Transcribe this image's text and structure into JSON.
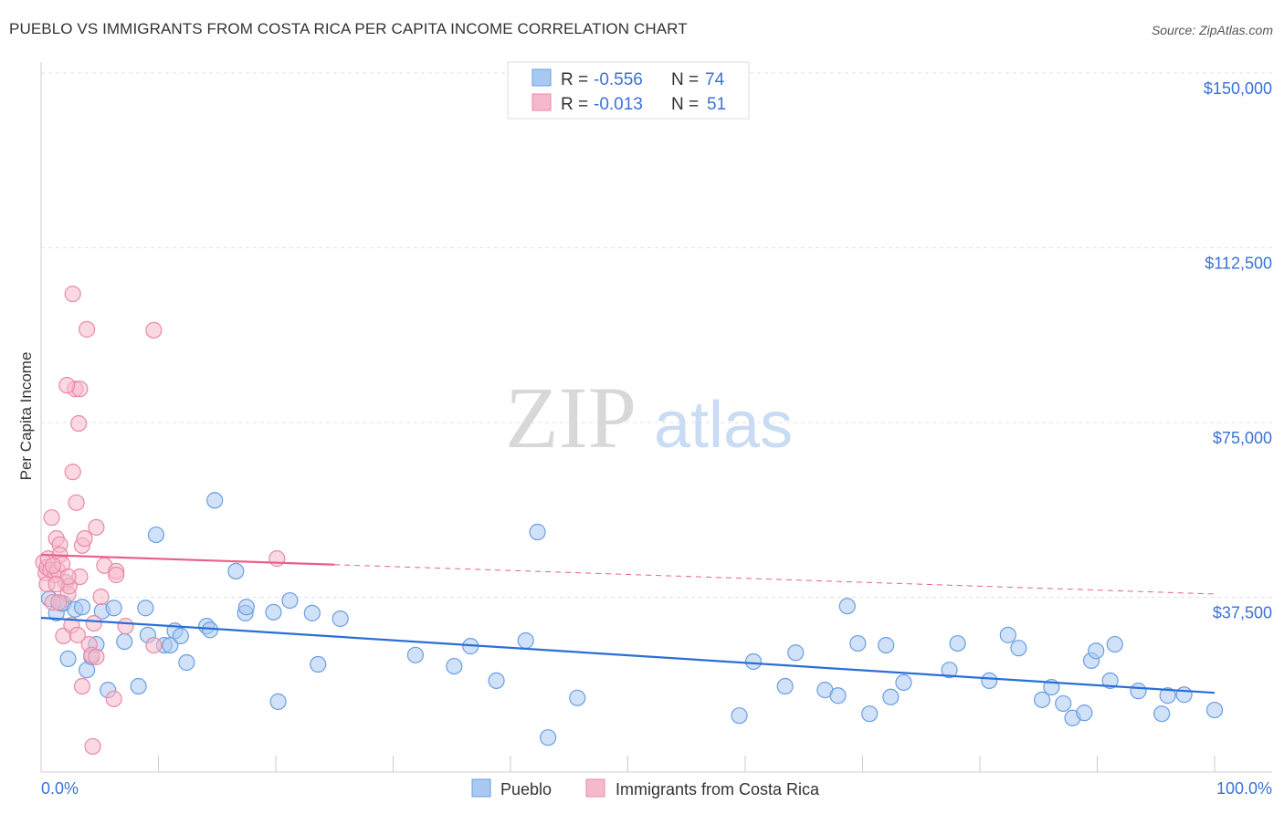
{
  "title": "PUEBLO VS IMMIGRANTS FROM COSTA RICA PER CAPITA INCOME CORRELATION CHART",
  "source": "Source: ZipAtlas.com",
  "watermark": {
    "zip": "ZIP",
    "atlas": "atlas"
  },
  "legend_top": [
    {
      "r_label": "R = ",
      "r": "-0.556",
      "n_label": "N = ",
      "n": "74"
    },
    {
      "r_label": "R = ",
      "r": "-0.013",
      "n_label": "N = ",
      "n": "51"
    }
  ],
  "colors": {
    "blue": "#2a6fd6",
    "blue_fill": "#a9c9f2",
    "pink": "#e8608a",
    "pink_fill": "#f6b9cb",
    "accent": "#3a72d8"
  },
  "chart_data": {
    "type": "scatter",
    "title": "PUEBLO VS IMMIGRANTS FROM COSTA RICA PER CAPITA INCOME CORRELATION CHART",
    "xlabel": "",
    "ylabel": "Per Capita Income",
    "xlim": [
      0,
      100
    ],
    "ylim": [
      0,
      150000
    ],
    "x_tick_labels": [
      "0.0%",
      "100.0%"
    ],
    "y_ticks": [
      37500,
      75000,
      112500,
      150000
    ],
    "y_tick_labels": [
      "$37,500",
      "$75,000",
      "$112,500",
      "$150,000"
    ],
    "grid": true,
    "legend_position": "bottom",
    "series": [
      {
        "name": "Pueblo",
        "color": "#2a6fd6",
        "trend": {
          "x": [
            0,
            100
          ],
          "y": [
            33100,
            17000
          ],
          "dashed_from": null
        },
        "points": [
          [
            0.7,
            37200
          ],
          [
            1.3,
            34100
          ],
          [
            1.7,
            36200
          ],
          [
            1.9,
            36200
          ],
          [
            2.3,
            24300
          ],
          [
            2.9,
            34900
          ],
          [
            3.5,
            35400
          ],
          [
            3.9,
            21900
          ],
          [
            4.3,
            24700
          ],
          [
            4.7,
            27400
          ],
          [
            5.2,
            34500
          ],
          [
            5.7,
            17600
          ],
          [
            6.2,
            35200
          ],
          [
            7.1,
            28000
          ],
          [
            8.3,
            18400
          ],
          [
            8.9,
            35200
          ],
          [
            9.1,
            29400
          ],
          [
            9.8,
            50900
          ],
          [
            10.5,
            27200
          ],
          [
            11.0,
            27200
          ],
          [
            11.4,
            30300
          ],
          [
            11.9,
            29200
          ],
          [
            12.4,
            23500
          ],
          [
            14.1,
            31300
          ],
          [
            14.4,
            30500
          ],
          [
            14.8,
            58300
          ],
          [
            16.6,
            43100
          ],
          [
            17.4,
            34100
          ],
          [
            17.5,
            35400
          ],
          [
            19.8,
            34300
          ],
          [
            20.2,
            15100
          ],
          [
            21.2,
            36800
          ],
          [
            23.1,
            34100
          ],
          [
            23.6,
            23100
          ],
          [
            25.5,
            32900
          ],
          [
            31.9,
            25100
          ],
          [
            35.2,
            22700
          ],
          [
            36.6,
            27000
          ],
          [
            38.8,
            19600
          ],
          [
            41.3,
            28200
          ],
          [
            42.3,
            51500
          ],
          [
            43.2,
            7400
          ],
          [
            45.7,
            15900
          ],
          [
            59.5,
            12100
          ],
          [
            60.7,
            23700
          ],
          [
            63.4,
            18400
          ],
          [
            64.3,
            25600
          ],
          [
            66.8,
            17600
          ],
          [
            67.9,
            16400
          ],
          [
            68.7,
            35600
          ],
          [
            69.6,
            27600
          ],
          [
            70.6,
            12500
          ],
          [
            72.0,
            27200
          ],
          [
            72.4,
            16100
          ],
          [
            73.5,
            19200
          ],
          [
            77.4,
            21900
          ],
          [
            78.1,
            27600
          ],
          [
            80.8,
            19600
          ],
          [
            82.4,
            29400
          ],
          [
            83.3,
            26600
          ],
          [
            85.3,
            15500
          ],
          [
            86.1,
            18200
          ],
          [
            87.1,
            14700
          ],
          [
            87.9,
            11600
          ],
          [
            88.9,
            12700
          ],
          [
            89.5,
            23900
          ],
          [
            89.9,
            26000
          ],
          [
            91.1,
            19600
          ],
          [
            91.5,
            27400
          ],
          [
            93.5,
            17400
          ],
          [
            95.5,
            12500
          ],
          [
            96.0,
            16400
          ],
          [
            97.4,
            16600
          ],
          [
            100,
            13300
          ]
        ]
      },
      {
        "name": "Immigrants from Costa Rica",
        "color": "#e8608a",
        "trend": {
          "x": [
            0,
            100
          ],
          "y": [
            46600,
            38200
          ],
          "dashed_from": 25
        },
        "points": [
          [
            0.2,
            45000
          ],
          [
            0.4,
            42700
          ],
          [
            0.5,
            43900
          ],
          [
            0.6,
            45800
          ],
          [
            0.8,
            43300
          ],
          [
            0.9,
            54600
          ],
          [
            1.0,
            36400
          ],
          [
            1.2,
            42300
          ],
          [
            1.3,
            50100
          ],
          [
            1.4,
            43300
          ],
          [
            1.6,
            48800
          ],
          [
            1.6,
            46600
          ],
          [
            1.8,
            44600
          ],
          [
            1.9,
            29200
          ],
          [
            2.1,
            40700
          ],
          [
            2.3,
            38200
          ],
          [
            2.4,
            39900
          ],
          [
            2.6,
            31500
          ],
          [
            2.7,
            102600
          ],
          [
            2.7,
            64400
          ],
          [
            2.9,
            82200
          ],
          [
            3.0,
            57800
          ],
          [
            3.2,
            74800
          ],
          [
            3.3,
            82200
          ],
          [
            3.3,
            41900
          ],
          [
            3.5,
            48600
          ],
          [
            3.7,
            50100
          ],
          [
            3.9,
            95000
          ],
          [
            4.1,
            27400
          ],
          [
            4.3,
            25100
          ],
          [
            4.4,
            5500
          ],
          [
            4.5,
            31900
          ],
          [
            4.7,
            52500
          ],
          [
            5.1,
            37600
          ],
          [
            5.4,
            44300
          ],
          [
            6.2,
            15700
          ],
          [
            6.4,
            43100
          ],
          [
            6.4,
            42300
          ],
          [
            7.2,
            31300
          ],
          [
            9.6,
            27200
          ],
          [
            9.6,
            94800
          ],
          [
            20.1,
            45800
          ],
          [
            2.2,
            83000
          ],
          [
            1.0,
            44300
          ],
          [
            0.5,
            40300
          ],
          [
            1.5,
            36400
          ],
          [
            2.3,
            41900
          ],
          [
            3.1,
            29400
          ],
          [
            3.5,
            18400
          ],
          [
            4.7,
            24700
          ],
          [
            1.3,
            40300
          ]
        ]
      }
    ]
  }
}
